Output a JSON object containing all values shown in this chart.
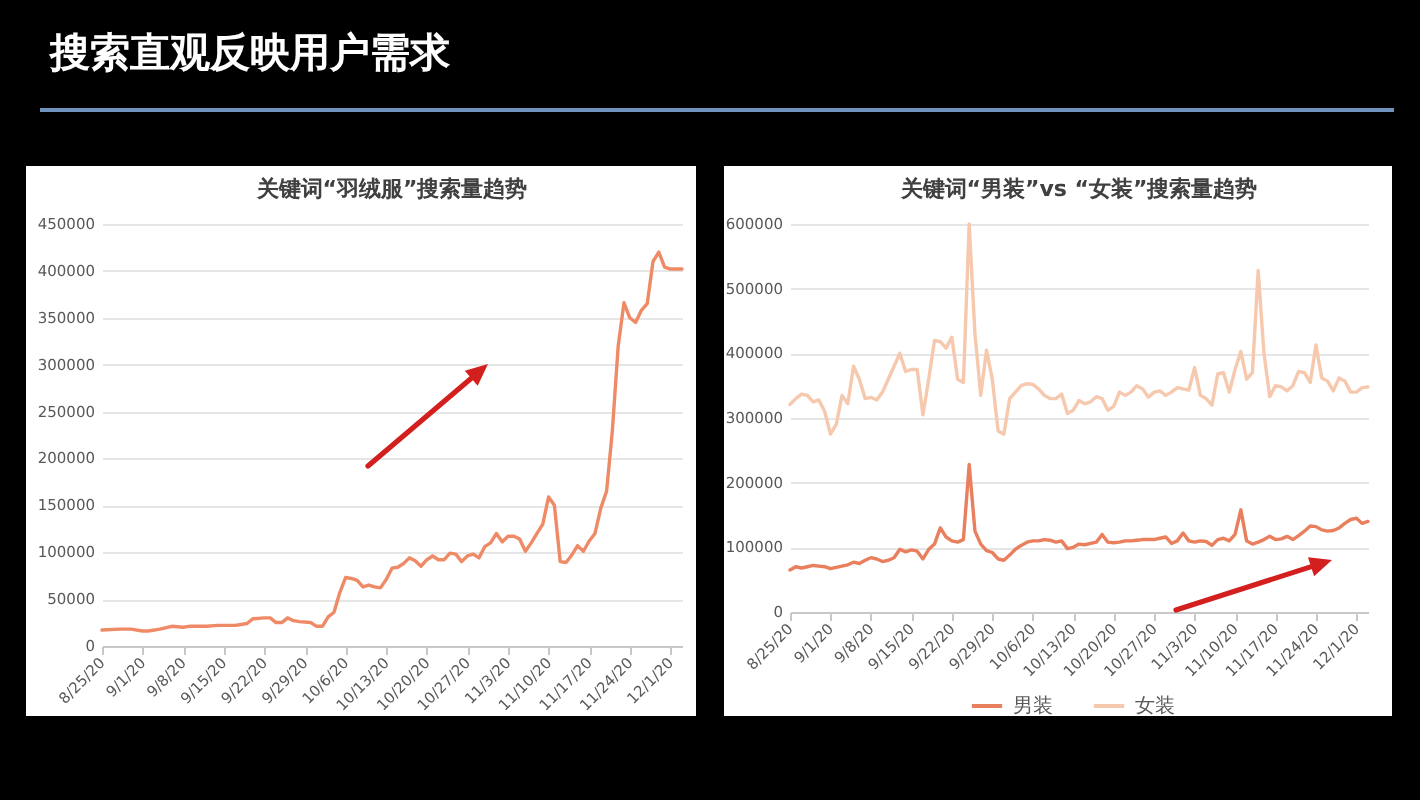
{
  "chart_data": [
    {
      "type": "other",
      "title": "搜索直观反映用户需求"
    },
    {
      "type": "line",
      "title": "关键词“羽绒服”搜索量趋势",
      "x": [
        "--08-25",
        "--08-28",
        "--08-30",
        "--09-01",
        "--09-02",
        "--09-04",
        "--09-06",
        "--09-08",
        "--09-09",
        "--09-12",
        "--09-14",
        "--09-17",
        "--09-19",
        "--09-20",
        "--09-22",
        "--09-23",
        "--09-24",
        "--09-25",
        "--09-26",
        "--09-27",
        "--09-28",
        "--09-30",
        "--10-01",
        "--10-02",
        "--10-03",
        "--10-04",
        "--10-05",
        "--10-06",
        "--10-07",
        "--10-08",
        "--10-09",
        "--10-10",
        "--10-11",
        "--10-12",
        "--10-13",
        "--10-14",
        "--10-15",
        "--10-16",
        "--10-17",
        "--10-18",
        "--10-19",
        "--10-20",
        "--10-21",
        "--10-22",
        "--10-23",
        "--10-24",
        "--10-25",
        "--10-26",
        "--10-27",
        "--10-28",
        "--10-29",
        "--10-30",
        "--10-31",
        "--11-01",
        "--11-02",
        "--11-03",
        "--11-04",
        "--11-05",
        "--11-06",
        "--11-07",
        "--11-08",
        "--11-09",
        "--11-10",
        "--11-11",
        "--11-12",
        "--11-13",
        "--11-14",
        "--11-15",
        "--11-16",
        "--11-17",
        "--11-18",
        "--11-19",
        "--11-20",
        "--11-21",
        "--11-22",
        "--11-23",
        "--11-24",
        "--11-25",
        "--11-26",
        "--11-27",
        "--11-28",
        "--11-29",
        "--11-30",
        "--12-01",
        "--12-03"
      ],
      "values": [
        17000,
        18000,
        18000,
        16000,
        16000,
        18000,
        21000,
        20000,
        21000,
        21000,
        22000,
        22000,
        24000,
        29000,
        30000,
        30000,
        25000,
        25000,
        30000,
        27000,
        26000,
        25000,
        21000,
        21000,
        31000,
        36000,
        57000,
        73000,
        72000,
        70000,
        63000,
        65000,
        63000,
        62000,
        71000,
        83000,
        84000,
        88000,
        94000,
        91000,
        85000,
        92000,
        96000,
        92000,
        92000,
        99000,
        98000,
        90000,
        96000,
        98000,
        94000,
        106000,
        110000,
        120000,
        111000,
        117000,
        117000,
        114000,
        101000,
        110000,
        120000,
        130000,
        159000,
        150000,
        90000,
        89000,
        97000,
        107000,
        101000,
        112000,
        120000,
        147000,
        165000,
        230000,
        320000,
        366000,
        350000,
        345000,
        358000,
        365000,
        410000,
        420000,
        404000,
        402000,
        402000
      ],
      "color": "#ef8a66",
      "xlim": [
        "--08-25",
        "--12-03"
      ],
      "xticks": [
        {
          "value": "--08-25",
          "label": "8/25/20"
        },
        {
          "value": "--09-01",
          "label": "9/1/20"
        },
        {
          "value": "--09-08",
          "label": "9/8/20"
        },
        {
          "value": "--09-15",
          "label": "9/15/20"
        },
        {
          "value": "--09-22",
          "label": "9/22/20"
        },
        {
          "value": "--09-29",
          "label": "9/29/20"
        },
        {
          "value": "--10-06",
          "label": "10/6/20"
        },
        {
          "value": "--10-13",
          "label": "10/13/20"
        },
        {
          "value": "--10-20",
          "label": "10/20/20"
        },
        {
          "value": "--10-27",
          "label": "10/27/20"
        },
        {
          "value": "--11-03",
          "label": "11/3/20"
        },
        {
          "value": "--11-10",
          "label": "11/10/20"
        },
        {
          "value": "--11-17",
          "label": "11/17/20"
        },
        {
          "value": "--11-24",
          "label": "11/24/20"
        },
        {
          "value": "--12-01",
          "label": "12/1/20"
        }
      ],
      "ylim": [
        0,
        450000
      ],
      "yticks": [
        0,
        50000,
        100000,
        150000,
        200000,
        250000,
        300000,
        350000,
        400000,
        450000
      ],
      "grid": "y"
    },
    {
      "type": "line",
      "title": "关键词“男装”vs “女装”搜索量趋势",
      "x": [
        "--08-25",
        "--08-26",
        "--08-27",
        "--08-28",
        "--08-29",
        "--08-30",
        "--08-31",
        "--09-01",
        "--09-02",
        "--09-03",
        "--09-04",
        "--09-05",
        "--09-06",
        "--09-07",
        "--09-08",
        "--09-09",
        "--09-10",
        "--09-11",
        "--09-12",
        "--09-13",
        "--09-14",
        "--09-15",
        "--09-16",
        "--09-17",
        "--09-18",
        "--09-19",
        "--09-20",
        "--09-21",
        "--09-22",
        "--09-23",
        "--09-24",
        "--09-25",
        "--09-26",
        "--09-27",
        "--09-28",
        "--09-29",
        "--09-30",
        "--10-01",
        "--10-02",
        "--10-03",
        "--10-04",
        "--10-05",
        "--10-06",
        "--10-07",
        "--10-08",
        "--10-09",
        "--10-10",
        "--10-11",
        "--10-12",
        "--10-13",
        "--10-14",
        "--10-15",
        "--10-16",
        "--10-17",
        "--10-18",
        "--10-19",
        "--10-20",
        "--10-21",
        "--10-22",
        "--10-23",
        "--10-24",
        "--10-25",
        "--10-26",
        "--10-27",
        "--10-28",
        "--10-29",
        "--10-30",
        "--10-31",
        "--11-01",
        "--11-02",
        "--11-03",
        "--11-04",
        "--11-05",
        "--11-06",
        "--11-07",
        "--11-08",
        "--11-09",
        "--11-10",
        "--11-11",
        "--11-12",
        "--11-13",
        "--11-14",
        "--11-15",
        "--11-16",
        "--11-17",
        "--11-18",
        "--11-19",
        "--11-20",
        "--11-21",
        "--11-22",
        "--11-23",
        "--11-24",
        "--11-25",
        "--11-26",
        "--11-27",
        "--11-28",
        "--11-29",
        "--11-30",
        "--12-01",
        "--12-02",
        "--12-03"
      ],
      "series": [
        {
          "name": "男装",
          "color": "#e97f5c",
          "values": [
            65000,
            70000,
            68000,
            70000,
            72000,
            71000,
            70000,
            67000,
            69000,
            71000,
            73000,
            77000,
            75000,
            80000,
            84000,
            82000,
            78000,
            80000,
            84000,
            97000,
            93000,
            96000,
            94000,
            82000,
            97000,
            105000,
            130000,
            116000,
            110000,
            108000,
            112000,
            228000,
            125000,
            105000,
            95000,
            92000,
            82000,
            80000,
            88000,
            97000,
            103000,
            108000,
            110000,
            110000,
            112000,
            111000,
            108000,
            110000,
            98000,
            100000,
            105000,
            104000,
            106000,
            108000,
            120000,
            108000,
            107000,
            108000,
            110000,
            110000,
            111000,
            112000,
            112000,
            112000,
            114000,
            116000,
            106000,
            110000,
            122000,
            110000,
            108000,
            110000,
            109000,
            103000,
            112000,
            114000,
            110000,
            120000,
            158000,
            110000,
            105000,
            108000,
            112000,
            117000,
            112000,
            113000,
            117000,
            112000,
            118000,
            125000,
            133000,
            132000,
            127000,
            125000,
            126000,
            130000,
            137000,
            143000,
            145000,
            137000,
            140000
          ]
        },
        {
          "name": "女装",
          "color": "#f6c8ad",
          "values": [
            321000,
            330000,
            337000,
            335000,
            325000,
            328000,
            310000,
            275000,
            290000,
            335000,
            322000,
            380000,
            360000,
            330000,
            332000,
            328000,
            340000,
            360000,
            380000,
            400000,
            372000,
            375000,
            375000,
            305000,
            360000,
            420000,
            418000,
            408000,
            425000,
            360000,
            355000,
            600000,
            430000,
            335000,
            405000,
            360000,
            280000,
            275000,
            330000,
            340000,
            350000,
            353000,
            352000,
            345000,
            335000,
            330000,
            330000,
            337000,
            307000,
            312000,
            327000,
            322000,
            325000,
            333000,
            330000,
            312000,
            318000,
            340000,
            335000,
            340000,
            350000,
            345000,
            332000,
            340000,
            342000,
            335000,
            340000,
            347000,
            345000,
            343000,
            378000,
            335000,
            330000,
            320000,
            368000,
            370000,
            340000,
            375000,
            403000,
            360000,
            370000,
            528000,
            400000,
            333000,
            350000,
            348000,
            342000,
            350000,
            372000,
            370000,
            355000,
            413000,
            362000,
            357000,
            342000,
            362000,
            357000,
            340000,
            340000,
            347000,
            348000
          ]
        }
      ],
      "xlim": [
        "--08-25",
        "--12-03"
      ],
      "xticks": [
        {
          "value": "--08-25",
          "label": "8/25/20"
        },
        {
          "value": "--09-01",
          "label": "9/1/20"
        },
        {
          "value": "--09-08",
          "label": "9/8/20"
        },
        {
          "value": "--09-15",
          "label": "9/15/20"
        },
        {
          "value": "--09-22",
          "label": "9/22/20"
        },
        {
          "value": "--09-29",
          "label": "9/29/20"
        },
        {
          "value": "--10-06",
          "label": "10/6/20"
        },
        {
          "value": "--10-13",
          "label": "10/13/20"
        },
        {
          "value": "--10-20",
          "label": "10/20/20"
        },
        {
          "value": "--10-27",
          "label": "10/27/20"
        },
        {
          "value": "--11-03",
          "label": "11/3/20"
        },
        {
          "value": "--11-10",
          "label": "11/10/20"
        },
        {
          "value": "--11-17",
          "label": "11/17/20"
        },
        {
          "value": "--11-24",
          "label": "11/24/20"
        },
        {
          "value": "--12-01",
          "label": "12/1/20"
        }
      ],
      "ylim": [
        0,
        600000
      ],
      "yticks": [
        0,
        100000,
        200000,
        300000,
        400000,
        500000,
        600000
      ],
      "grid": "y",
      "legend": "bottom"
    }
  ]
}
